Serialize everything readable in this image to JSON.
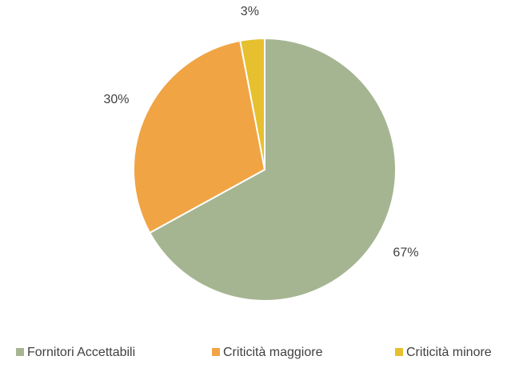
{
  "chart_data": {
    "type": "pie",
    "categories": [
      "Fornitori Accettabili",
      "Criticità maggiore",
      "Criticità minore"
    ],
    "values": [
      67,
      30,
      3
    ],
    "value_labels": [
      "67%",
      "30%",
      "3%"
    ],
    "colors": [
      "#a5b592",
      "#f0a444",
      "#e6c02e"
    ],
    "legend": "bottom"
  }
}
